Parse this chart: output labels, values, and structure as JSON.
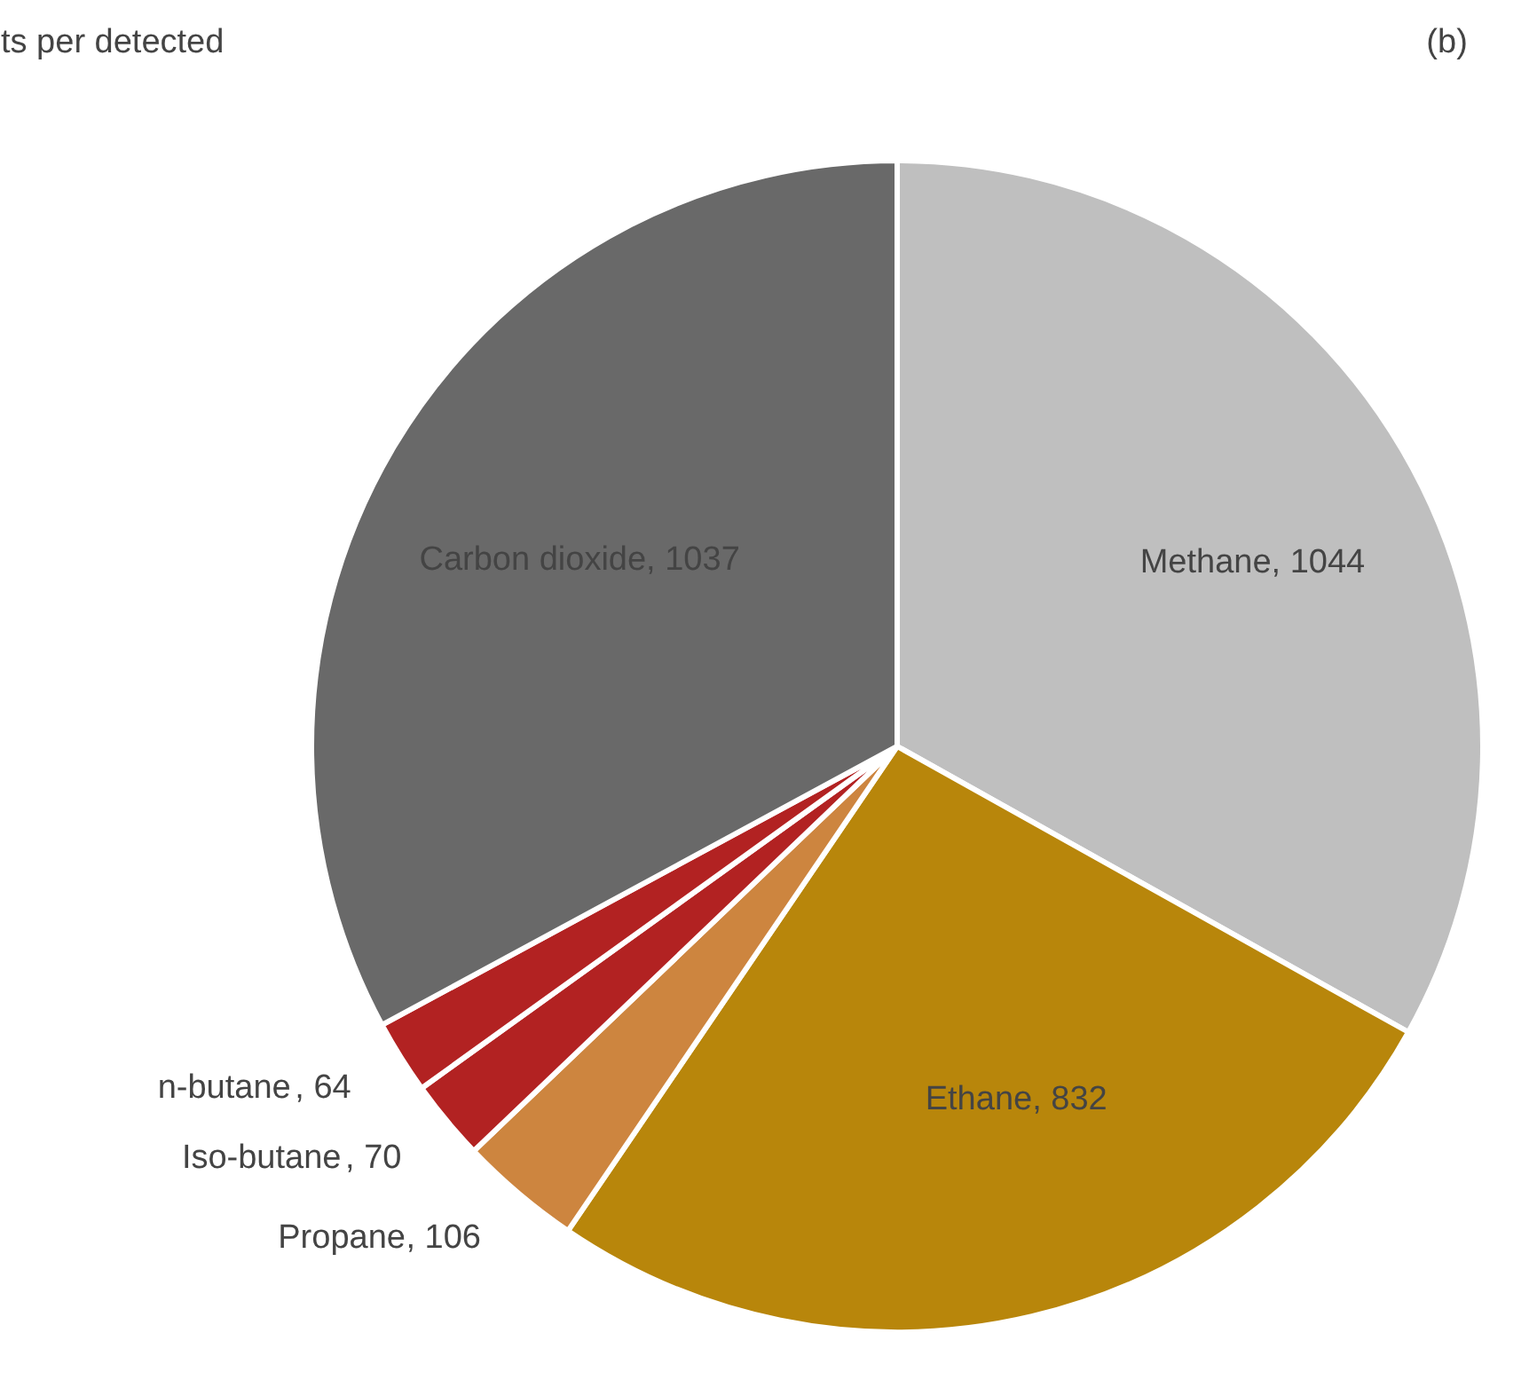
{
  "chart_data": {
    "type": "pie",
    "title": "ts per detected",
    "annotations": [
      "(b)"
    ],
    "categories": [
      "Methane",
      "Ethane",
      "Propane",
      "Iso-butane",
      "n-butane",
      "Carbon dioxide"
    ],
    "values": [
      1044,
      832,
      106,
      70,
      64,
      1037
    ],
    "colors": [
      "#bfbfbf",
      "#b8860b",
      "#cd853f",
      "#b22222",
      "#b22222",
      "#696969"
    ],
    "value_labels": [
      ", 1044",
      ", 832",
      ", 106",
      ", 70",
      ", 64",
      ", 1037"
    ]
  }
}
